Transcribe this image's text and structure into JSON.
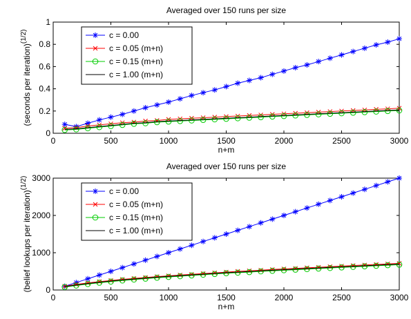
{
  "chart_data": [
    {
      "type": "line",
      "title": "Averaged over 150 runs per size",
      "xlabel": "n+m",
      "ylabel": "(seconds per iteration)",
      "ylabel_superscript": "(1/2)",
      "xlim": [
        0,
        3000
      ],
      "ylim": [
        0,
        1
      ],
      "xticks": [
        0,
        500,
        1000,
        1500,
        2000,
        2500,
        3000
      ],
      "yticks": [
        0,
        0.2,
        0.4,
        0.6,
        0.8,
        1
      ],
      "ytick_labels": [
        "0",
        "0.2",
        "0.4",
        "0.6",
        "0.8",
        "1"
      ],
      "grid": false,
      "legend_position": "top-left",
      "series": [
        {
          "name": "c = 0.00",
          "color": "#0000ff",
          "marker": "asterisk",
          "x_start": 100,
          "x_end": 3000,
          "x_step": 100,
          "values": [
            0.08,
            0.06,
            0.09,
            0.12,
            0.145,
            0.17,
            0.2,
            0.23,
            0.255,
            0.28,
            0.31,
            0.34,
            0.365,
            0.39,
            0.42,
            0.45,
            0.475,
            0.5,
            0.53,
            0.56,
            0.59,
            0.615,
            0.645,
            0.675,
            0.705,
            0.735,
            0.765,
            0.795,
            0.82,
            0.85
          ]
        },
        {
          "name": "c = 0.05 (m+n)",
          "color": "#ff0000",
          "marker": "x",
          "x_start": 100,
          "x_end": 3000,
          "x_step": 100,
          "values": [
            0.045,
            0.05,
            0.065,
            0.075,
            0.085,
            0.095,
            0.1,
            0.11,
            0.115,
            0.125,
            0.13,
            0.135,
            0.14,
            0.145,
            0.15,
            0.155,
            0.16,
            0.165,
            0.17,
            0.175,
            0.18,
            0.185,
            0.19,
            0.195,
            0.2,
            0.205,
            0.21,
            0.215,
            0.22,
            0.225
          ]
        },
        {
          "name": "c = 0.15 (m+n)",
          "color": "#00cc00",
          "marker": "circle",
          "x_start": 100,
          "x_end": 3000,
          "x_step": 100,
          "values": [
            0.03,
            0.035,
            0.045,
            0.055,
            0.065,
            0.075,
            0.085,
            0.09,
            0.1,
            0.105,
            0.11,
            0.115,
            0.12,
            0.125,
            0.13,
            0.135,
            0.14,
            0.145,
            0.15,
            0.155,
            0.16,
            0.165,
            0.17,
            0.175,
            0.18,
            0.185,
            0.19,
            0.195,
            0.2,
            0.205
          ]
        },
        {
          "name": "c = 1.00 (m+n)",
          "color": "#000000",
          "marker": "none",
          "x_start": 100,
          "x_end": 3000,
          "x_step": 100,
          "values": [
            0.035,
            0.04,
            0.05,
            0.06,
            0.07,
            0.08,
            0.09,
            0.095,
            0.105,
            0.11,
            0.115,
            0.12,
            0.125,
            0.13,
            0.135,
            0.14,
            0.145,
            0.15,
            0.155,
            0.16,
            0.165,
            0.17,
            0.175,
            0.18,
            0.185,
            0.19,
            0.195,
            0.2,
            0.205,
            0.21
          ]
        }
      ]
    },
    {
      "type": "line",
      "title": "Averaged over 150 runs per size",
      "xlabel": "n+m",
      "ylabel": "(belief lookups per iteration)",
      "ylabel_superscript": "(1/2)",
      "xlim": [
        0,
        3000
      ],
      "ylim": [
        0,
        3000
      ],
      "xticks": [
        0,
        500,
        1000,
        1500,
        2000,
        2500,
        3000
      ],
      "yticks": [
        0,
        1000,
        2000,
        3000
      ],
      "ytick_labels": [
        "0",
        "1000",
        "2000",
        "3000"
      ],
      "grid": false,
      "legend_position": "top-left",
      "series": [
        {
          "name": "c = 0.00",
          "color": "#0000ff",
          "marker": "asterisk",
          "x_start": 100,
          "x_end": 3000,
          "x_step": 100,
          "values": [
            100,
            200,
            300,
            400,
            500,
            600,
            700,
            800,
            900,
            1000,
            1100,
            1200,
            1300,
            1400,
            1500,
            1600,
            1700,
            1800,
            1900,
            2000,
            2100,
            2200,
            2300,
            2400,
            2500,
            2600,
            2700,
            2800,
            2900,
            3000
          ]
        },
        {
          "name": "c = 0.05 (m+n)",
          "color": "#ff0000",
          "marker": "x",
          "x_start": 100,
          "x_end": 3000,
          "x_step": 100,
          "values": [
            100,
            150,
            190,
            225,
            255,
            285,
            310,
            335,
            360,
            380,
            400,
            420,
            440,
            460,
            480,
            500,
            515,
            530,
            550,
            565,
            580,
            595,
            610,
            625,
            640,
            655,
            670,
            685,
            700,
            715
          ]
        },
        {
          "name": "c = 0.15 (m+n)",
          "color": "#00cc00",
          "marker": "circle",
          "x_start": 100,
          "x_end": 3000,
          "x_step": 100,
          "values": [
            80,
            120,
            160,
            195,
            225,
            255,
            280,
            305,
            330,
            350,
            370,
            390,
            410,
            430,
            450,
            465,
            480,
            500,
            515,
            530,
            545,
            560,
            575,
            590,
            605,
            620,
            635,
            650,
            665,
            680
          ]
        },
        {
          "name": "c = 1.00 (m+n)",
          "color": "#000000",
          "marker": "none",
          "x_start": 100,
          "x_end": 3000,
          "x_step": 100,
          "values": [
            90,
            135,
            175,
            210,
            240,
            270,
            295,
            320,
            345,
            365,
            385,
            405,
            425,
            445,
            465,
            480,
            495,
            515,
            530,
            545,
            560,
            575,
            590,
            605,
            620,
            635,
            650,
            665,
            680,
            695
          ]
        }
      ]
    }
  ]
}
